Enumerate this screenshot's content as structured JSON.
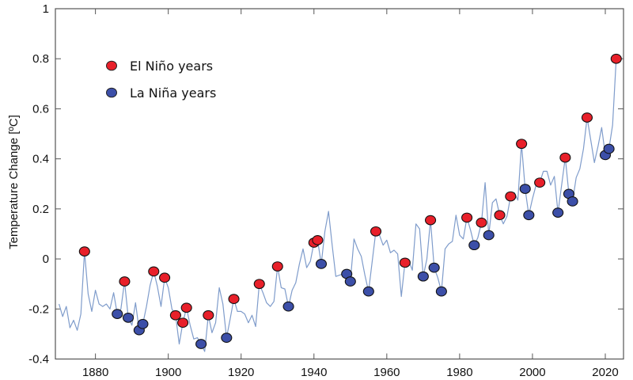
{
  "chart_data": {
    "type": "line",
    "title": "",
    "xlabel": "",
    "ylabel": "Temperature Change [ºC]",
    "xlim": [
      1869,
      2025
    ],
    "ylim": [
      -0.4,
      1
    ],
    "x_ticks": [
      1880,
      1900,
      1920,
      1940,
      1960,
      1980,
      2000,
      2020
    ],
    "y_ticks": [
      -0.4,
      -0.2,
      0,
      0.2,
      0.4,
      0.6,
      0.8,
      1
    ],
    "y_tick_labels": [
      "-0.4",
      "-0.2",
      "0",
      "0.2",
      "0.4",
      "0.6",
      "0.8",
      "1"
    ],
    "grid": false,
    "legend_position": "top-left",
    "line_color": "#7f9ccb",
    "x_start": 1870,
    "values": [
      -0.18,
      -0.23,
      -0.19,
      -0.275,
      -0.245,
      -0.285,
      -0.22,
      0.03,
      -0.14,
      -0.21,
      -0.125,
      -0.18,
      -0.19,
      -0.18,
      -0.2,
      -0.135,
      -0.22,
      -0.2,
      -0.09,
      -0.235,
      -0.265,
      -0.175,
      -0.285,
      -0.26,
      -0.19,
      -0.105,
      -0.05,
      -0.11,
      -0.19,
      -0.075,
      -0.115,
      -0.2,
      -0.225,
      -0.34,
      -0.255,
      -0.195,
      -0.265,
      -0.32,
      -0.315,
      -0.34,
      -0.37,
      -0.225,
      -0.295,
      -0.255,
      -0.115,
      -0.18,
      -0.315,
      -0.24,
      -0.16,
      -0.21,
      -0.21,
      -0.22,
      -0.255,
      -0.225,
      -0.27,
      -0.1,
      -0.135,
      -0.175,
      -0.19,
      -0.17,
      -0.03,
      -0.115,
      -0.12,
      -0.19,
      -0.125,
      -0.095,
      -0.02,
      0.04,
      -0.035,
      -0.01,
      0.065,
      0.075,
      -0.02,
      0.11,
      0.19,
      0.055,
      -0.07,
      -0.065,
      -0.06,
      -0.06,
      -0.09,
      0.08,
      0.04,
      0.01,
      -0.065,
      -0.13,
      -0.01,
      0.11,
      0.095,
      0.055,
      0.075,
      0.025,
      0.035,
      0.02,
      -0.15,
      -0.015,
      -0.005,
      -0.045,
      0.14,
      0.12,
      -0.07,
      0.0,
      0.155,
      -0.035,
      -0.075,
      -0.13,
      0.04,
      0.06,
      0.07,
      0.175,
      0.095,
      0.08,
      0.165,
      0.115,
      0.055,
      0.085,
      0.145,
      0.305,
      0.095,
      0.225,
      0.24,
      0.175,
      0.14,
      0.17,
      0.25,
      0.265,
      0.235,
      0.46,
      0.28,
      0.175,
      0.24,
      0.295,
      0.305,
      0.35,
      0.35,
      0.295,
      0.33,
      0.185,
      0.295,
      0.405,
      0.26,
      0.23,
      0.325,
      0.36,
      0.44,
      0.565,
      0.475,
      0.385,
      0.45,
      0.525,
      0.415,
      0.44,
      0.535,
      0.8
    ],
    "series": [
      {
        "name": "El Niño years",
        "color": "#e8202a",
        "years": [
          1877,
          1888,
          1896,
          1899,
          1902,
          1904,
          1905,
          1911,
          1918,
          1925,
          1930,
          1940,
          1941,
          1957,
          1965,
          1972,
          1982,
          1986,
          1991,
          1994,
          1997,
          2002,
          2009,
          2015,
          2023
        ]
      },
      {
        "name": "La Niña years",
        "color": "#3c4fa8",
        "years": [
          1886,
          1889,
          1892,
          1893,
          1909,
          1916,
          1933,
          1942,
          1949,
          1950,
          1955,
          1970,
          1973,
          1975,
          1984,
          1988,
          1998,
          1999,
          2007,
          2010,
          2011,
          2020,
          2021
        ]
      }
    ]
  }
}
